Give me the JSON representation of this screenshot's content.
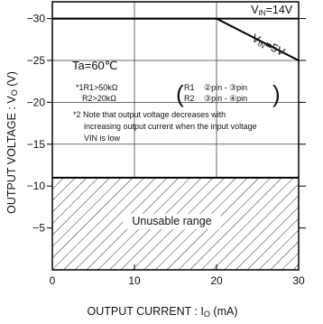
{
  "chart_data": {
    "type": "line",
    "xlabel": "OUTPUT  CURRENT : I",
    "xlabel_sub": "O",
    "xlabel_unit": "  (mA)",
    "ylabel": "OUTPUT  VOLTAGE : V",
    "ylabel_sub": "O",
    "ylabel_unit": "  (V)",
    "xlim": [
      0,
      30
    ],
    "ylim": [
      0,
      -32
    ],
    "x_ticks": [
      {
        "value": 0,
        "label": "0"
      },
      {
        "value": 10,
        "label": "10"
      },
      {
        "value": 20,
        "label": "20"
      },
      {
        "value": 30,
        "label": "30"
      }
    ],
    "y_ticks": [
      {
        "value": -5,
        "label": "−5"
      },
      {
        "value": -10,
        "label": "−10"
      },
      {
        "value": -15,
        "label": "−15"
      },
      {
        "value": -20,
        "label": "−20"
      },
      {
        "value": -25,
        "label": "−25"
      },
      {
        "value": -30,
        "label": "−30"
      }
    ],
    "grid": true,
    "series": [
      {
        "name": "VIN=14V",
        "label_main": "V",
        "label_sub": "IN",
        "label_rest": "=14V",
        "x": [
          0,
          30
        ],
        "y": [
          -30,
          -30
        ]
      },
      {
        "name": "VIN=5V",
        "label_main": "V",
        "label_sub": "IN",
        "label_rest": "=5V",
        "x": [
          0,
          20,
          30
        ],
        "y": [
          -30,
          -30,
          -25
        ]
      }
    ],
    "unusable_region": {
      "label": "Unusable range",
      "y_from": 0,
      "y_to": -11
    },
    "annotations": {
      "ta": "Ta=60℃",
      "note1_line1": "*1R1>50kΩ",
      "note1_line2": "R2>20kΩ",
      "r1_label": "R1",
      "r1_pins": "②pin - ③pin",
      "r2_label": "R2",
      "r2_pins": "③pin - ④pin",
      "note2_line1": "*2 Note that output voltage decreases with",
      "note2_line2": "increasing output current when the input voltage",
      "note2_line3": "VIN is low"
    }
  }
}
